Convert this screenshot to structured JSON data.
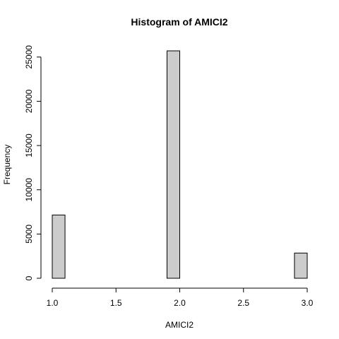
{
  "chart_data": {
    "type": "bar",
    "title": "Histogram of AMICI2",
    "xlabel": "AMICI2",
    "ylabel": "Frequency",
    "bin_edges": [
      1.0,
      1.1,
      1.2,
      1.3,
      1.4,
      1.5,
      1.6,
      1.7,
      1.8,
      1.9,
      2.0,
      2.1,
      2.2,
      2.3,
      2.4,
      2.5,
      2.6,
      2.7,
      2.8,
      2.9,
      3.0
    ],
    "values": [
      7150,
      0,
      0,
      0,
      0,
      0,
      0,
      0,
      0,
      25700,
      0,
      0,
      0,
      0,
      0,
      0,
      0,
      0,
      0,
      2850
    ],
    "xlim": [
      1.0,
      3.0
    ],
    "ylim": [
      0,
      25700
    ],
    "xticks": [
      1.0,
      1.5,
      2.0,
      2.5,
      3.0
    ],
    "xtick_labels": [
      "1.0",
      "1.5",
      "2.0",
      "2.5",
      "3.0"
    ],
    "yticks": [
      0,
      5000,
      10000,
      15000,
      20000,
      25000
    ],
    "ytick_labels": [
      "0",
      "5000",
      "10000",
      "15000",
      "20000",
      "25000"
    ],
    "grid": false,
    "bar_color": "#cccccc"
  }
}
